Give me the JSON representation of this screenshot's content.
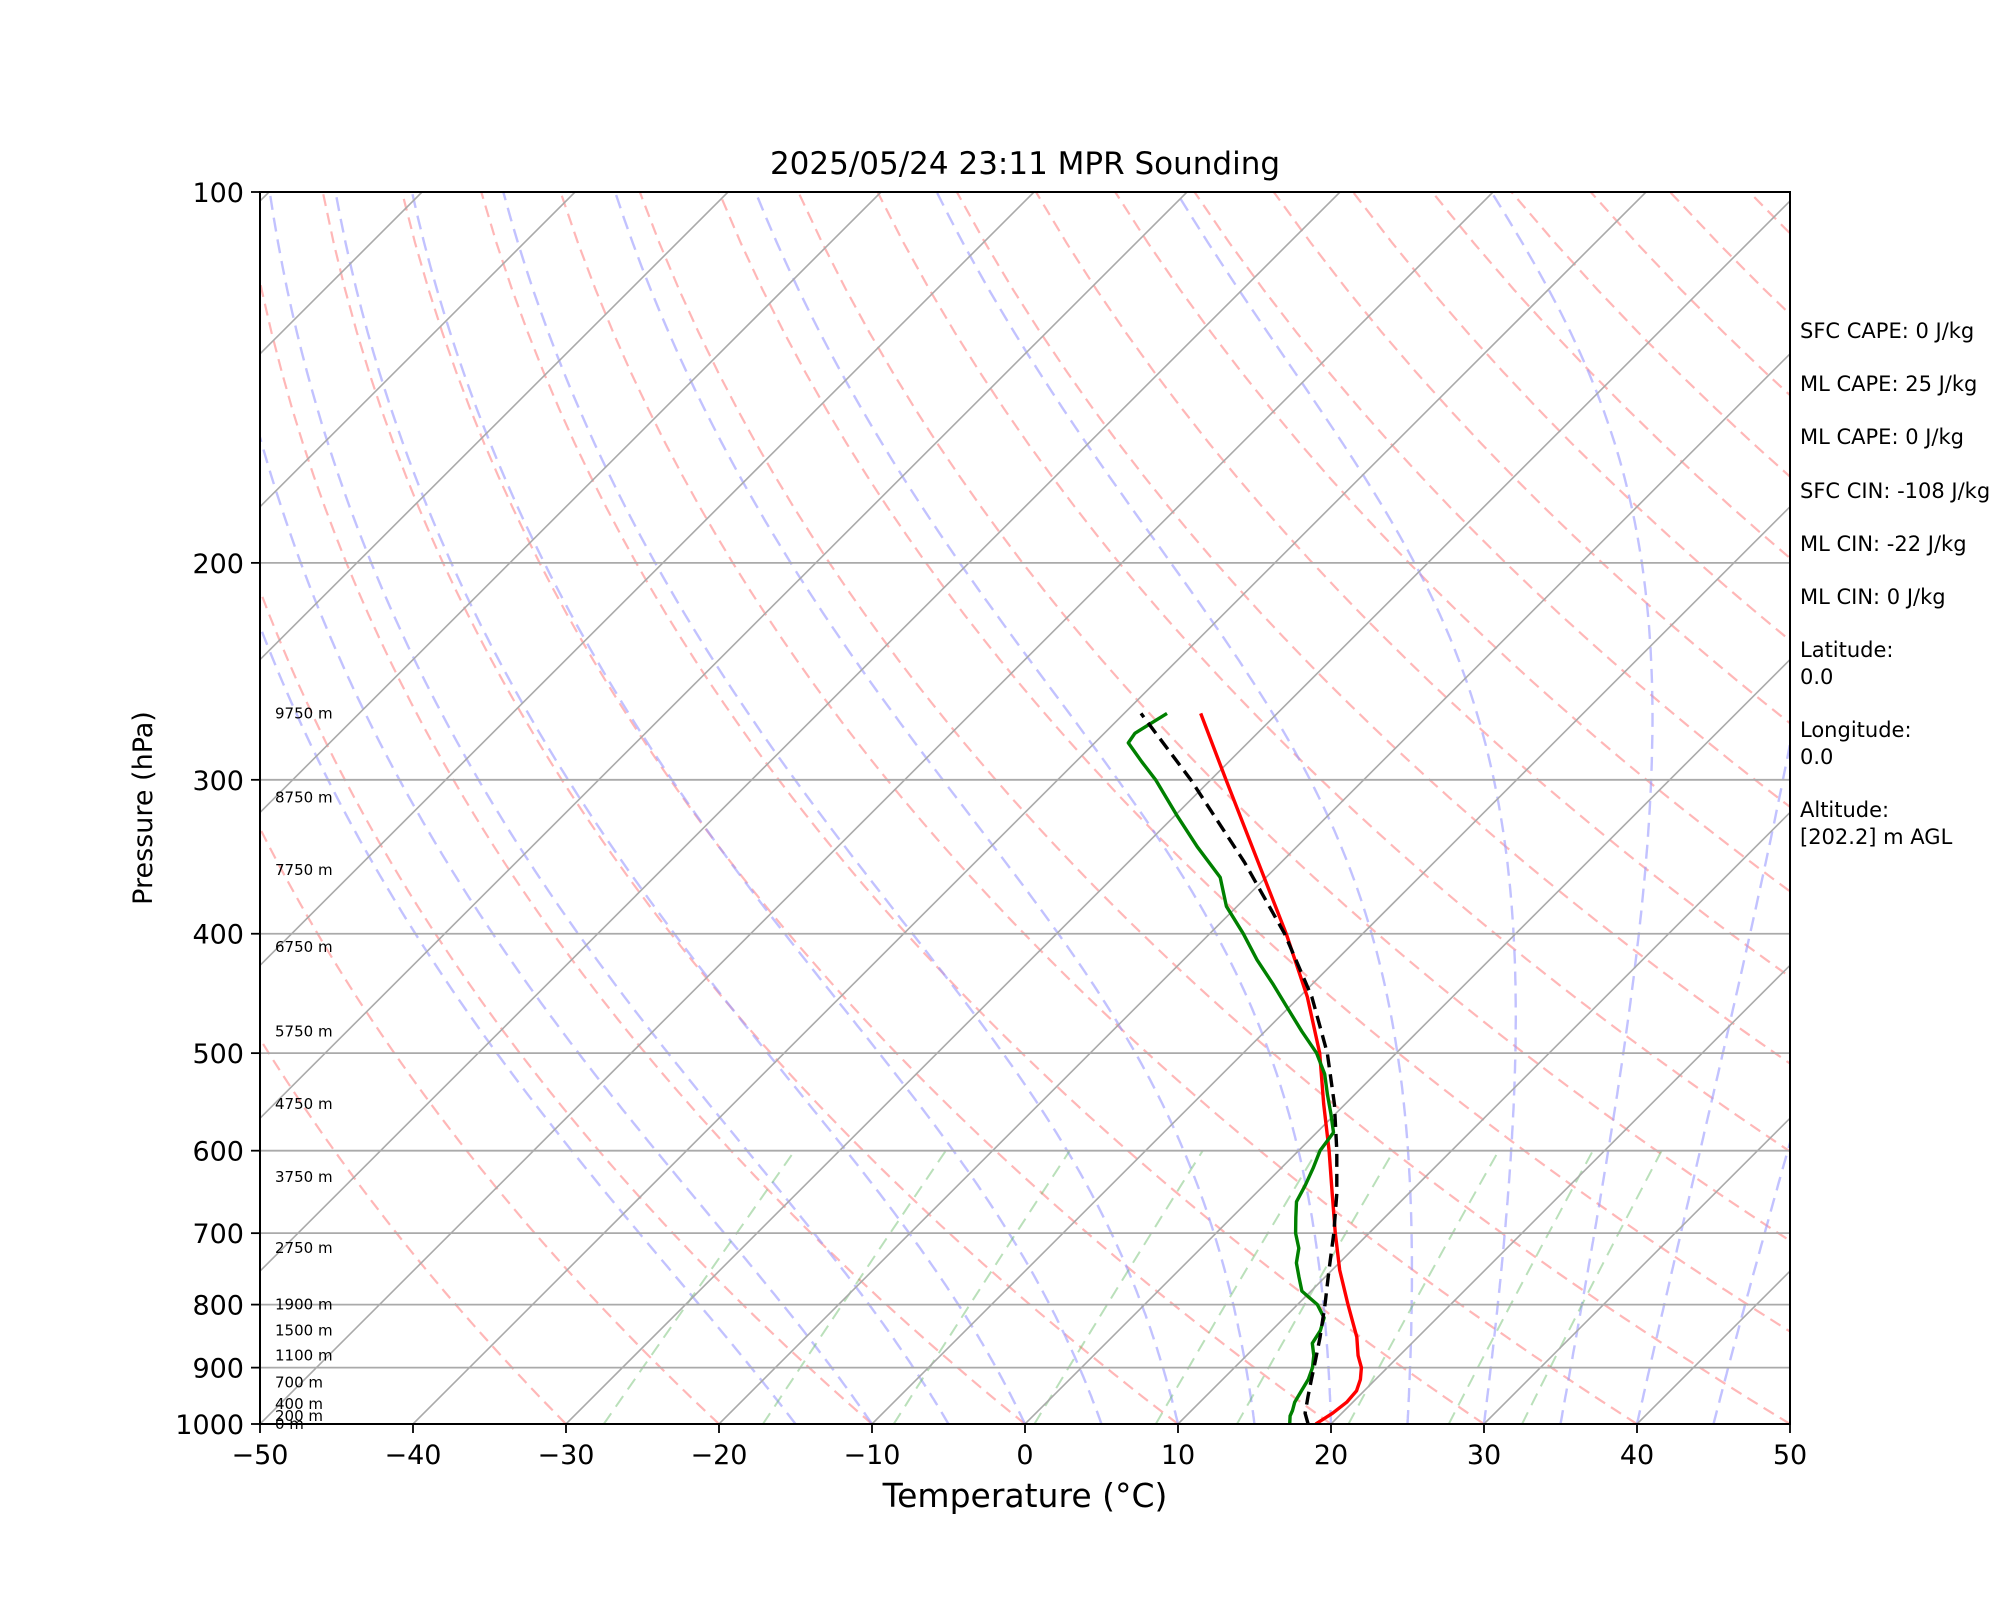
{
  "chart_data": {
    "type": "line",
    "title": "2025/05/24 23:11 MPR Sounding",
    "xlabel": "Temperature (°C)",
    "ylabel": "Pressure (hPa)",
    "xlim": [
      -50,
      50
    ],
    "ylim": [
      1000,
      100
    ],
    "y_scale": "log",
    "grid": true,
    "x_ticks": [
      "−50",
      "−40",
      "−30",
      "−20",
      "−10",
      "0",
      "10",
      "20",
      "30",
      "40",
      "50"
    ],
    "y_ticks": [
      "100",
      "200",
      "300",
      "400",
      "500",
      "600",
      "700",
      "800",
      "900",
      "1000"
    ],
    "height_labels": [
      {
        "p": 1000,
        "label": "0 m"
      },
      {
        "p": 985,
        "label": "200 m"
      },
      {
        "p": 963,
        "label": "400 m"
      },
      {
        "p": 925,
        "label": "700 m"
      },
      {
        "p": 880,
        "label": "1100 m"
      },
      {
        "p": 840,
        "label": "1500 m"
      },
      {
        "p": 800,
        "label": "1900 m"
      },
      {
        "p": 720,
        "label": "2750 m"
      },
      {
        "p": 630,
        "label": "3750 m"
      },
      {
        "p": 550,
        "label": "4750 m"
      },
      {
        "p": 480,
        "label": "5750 m"
      },
      {
        "p": 410,
        "label": "6750 m"
      },
      {
        "p": 355,
        "label": "7750 m"
      },
      {
        "p": 310,
        "label": "8750 m"
      },
      {
        "p": 265,
        "label": "9750 m"
      }
    ],
    "series": [
      {
        "color": "#ff0000",
        "style": "solid",
        "points": [
          [
            1000,
            19.0
          ],
          [
            980,
            19.4
          ],
          [
            960,
            19.6
          ],
          [
            940,
            19.5
          ],
          [
            920,
            19.0
          ],
          [
            900,
            18.3
          ],
          [
            880,
            17.3
          ],
          [
            850,
            16.0
          ],
          [
            800,
            13.3
          ],
          [
            750,
            10.5
          ],
          [
            700,
            7.8
          ],
          [
            650,
            5.0
          ],
          [
            600,
            2.0
          ],
          [
            550,
            -1.4
          ],
          [
            500,
            -5.0
          ],
          [
            450,
            -9.5
          ],
          [
            400,
            -15.0
          ],
          [
            350,
            -21.5
          ],
          [
            300,
            -29.0
          ],
          [
            265,
            -35.0
          ]
        ]
      },
      {
        "color": "#008000",
        "style": "solid",
        "points": [
          [
            1000,
            17.3
          ],
          [
            985,
            16.8
          ],
          [
            975,
            16.6
          ],
          [
            960,
            16.2
          ],
          [
            940,
            15.9
          ],
          [
            920,
            15.6
          ],
          [
            900,
            15.1
          ],
          [
            880,
            14.4
          ],
          [
            860,
            13.5
          ],
          [
            840,
            13.2
          ],
          [
            820,
            12.6
          ],
          [
            800,
            11.3
          ],
          [
            780,
            9.4
          ],
          [
            760,
            8.3
          ],
          [
            740,
            7.2
          ],
          [
            720,
            6.4
          ],
          [
            700,
            5.2
          ],
          [
            680,
            4.2
          ],
          [
            660,
            3.2
          ],
          [
            640,
            2.7
          ],
          [
            620,
            2.1
          ],
          [
            600,
            1.4
          ],
          [
            580,
            1.1
          ],
          [
            560,
            -0.3
          ],
          [
            540,
            -1.8
          ],
          [
            520,
            -3.3
          ],
          [
            500,
            -5.2
          ],
          [
            480,
            -7.6
          ],
          [
            460,
            -10.0
          ],
          [
            440,
            -12.5
          ],
          [
            420,
            -15.2
          ],
          [
            400,
            -17.8
          ],
          [
            380,
            -20.7
          ],
          [
            360,
            -23.0
          ],
          [
            340,
            -26.5
          ],
          [
            320,
            -30.0
          ],
          [
            300,
            -33.6
          ],
          [
            290,
            -35.7
          ],
          [
            280,
            -37.8
          ],
          [
            275,
            -38.0
          ],
          [
            265,
            -37.2
          ]
        ]
      },
      {
        "color": "#000000",
        "style": "dashed",
        "points": [
          [
            1000,
            18.5
          ],
          [
            980,
            17.6
          ],
          [
            950,
            16.7
          ],
          [
            920,
            15.8
          ],
          [
            900,
            15.2
          ],
          [
            850,
            13.6
          ],
          [
            800,
            11.8
          ],
          [
            750,
            9.8
          ],
          [
            700,
            7.7
          ],
          [
            650,
            5.3
          ],
          [
            600,
            2.5
          ],
          [
            550,
            -0.7
          ],
          [
            500,
            -4.5
          ],
          [
            450,
            -9.2
          ],
          [
            400,
            -15.1
          ],
          [
            350,
            -22.4
          ],
          [
            300,
            -31.3
          ],
          [
            265,
            -38.9
          ]
        ]
      }
    ],
    "annotations": [
      {
        "label": "SFC CAPE: 0 J/kg"
      },
      {
        "label": "ML CAPE: 25 J/kg"
      },
      {
        "label": "ML CAPE: 0 J/kg"
      },
      {
        "label": "SFC CIN: -108 J/kg"
      },
      {
        "label": "ML CIN: -22 J/kg"
      },
      {
        "label": "ML CIN: 0 J/kg"
      },
      {
        "label": "Latitude:",
        "value": "0.0"
      },
      {
        "label": "Longitude:",
        "value": "0.0"
      },
      {
        "label": "Altitude:",
        "value": "[202.2] m AGL"
      }
    ]
  }
}
